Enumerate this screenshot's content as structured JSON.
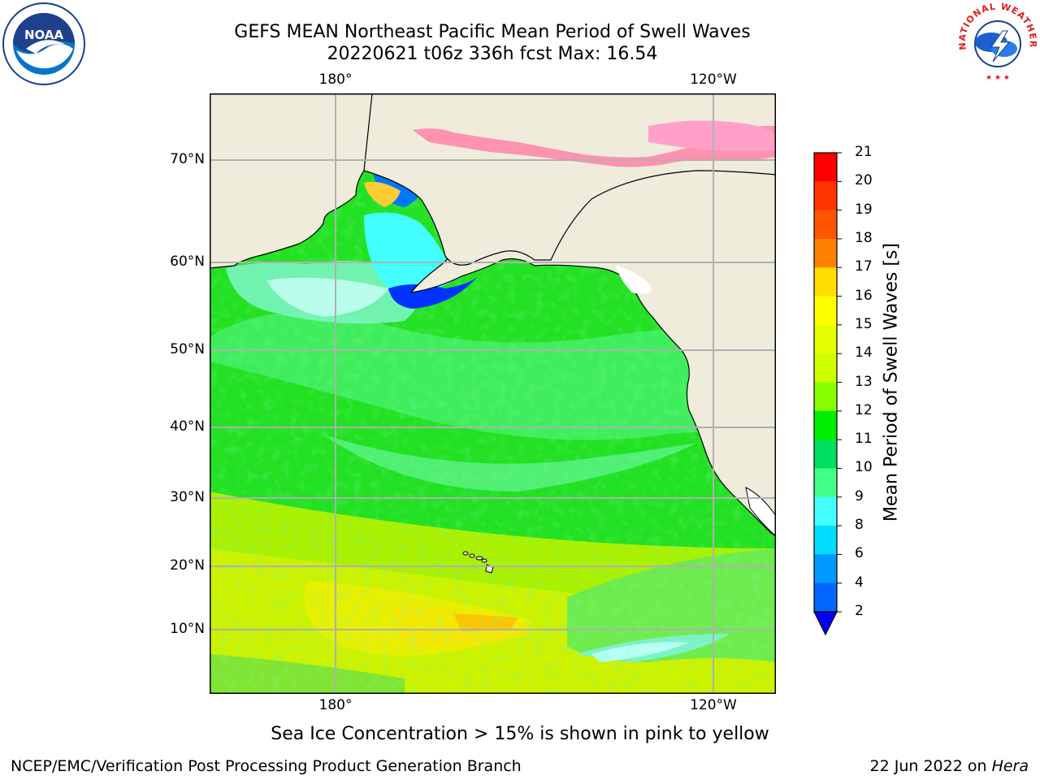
{
  "title": {
    "line1": "GEFS MEAN Northeast Pacific Mean Period of Swell Waves",
    "line2": "20220621 t06z 336h fcst   Max: 16.54"
  },
  "logos": {
    "left": {
      "icon": "noaa-logo",
      "text": "NOAA",
      "ring_text": "NATIONAL OCEANIC AND ATMOSPHERIC ADMINISTRATION · U.S. DEPARTMENT OF COMMERCE"
    },
    "right": {
      "icon": "nws-logo",
      "ring_text": "NATIONAL WEATHER SERVICE"
    }
  },
  "map": {
    "lon_labels_top": [
      "180°",
      "120°W"
    ],
    "lon_labels_bottom": [
      "180°",
      "120°W"
    ],
    "lat_labels": [
      "70°N",
      "60°N",
      "50°N",
      "40°N",
      "30°N",
      "20°N",
      "10°N"
    ],
    "colors": {
      "land": "#efecdc",
      "coast": "#000000",
      "grid": "#b0b0b0"
    }
  },
  "colorbar": {
    "label": "Mean Period of Swell Waves [s]",
    "ticks": [
      "21",
      "20",
      "19",
      "18",
      "17",
      "16",
      "15",
      "14",
      "13",
      "12",
      "11",
      "10",
      "9",
      "8",
      "6",
      "4",
      "2"
    ],
    "colors": [
      "#ff0000",
      "#ff3300",
      "#ff5500",
      "#ff8000",
      "#ffaa00",
      "#ffdd00",
      "#ffff00",
      "#e6ff00",
      "#ccff00",
      "#88ff00",
      "#00ee00",
      "#00e060",
      "#44ff88",
      "#aaffee",
      "#44ffff",
      "#00ddff",
      "#0099ff",
      "#0066ff",
      "#0000ff"
    ]
  },
  "note": "Sea Ice Concentration > 15% is shown in pink to yellow",
  "footer": {
    "left": "NCEP/EMC/Verification Post Processing Product Generation Branch",
    "date": "22 Jun 2022 on ",
    "host": "Hera"
  }
}
